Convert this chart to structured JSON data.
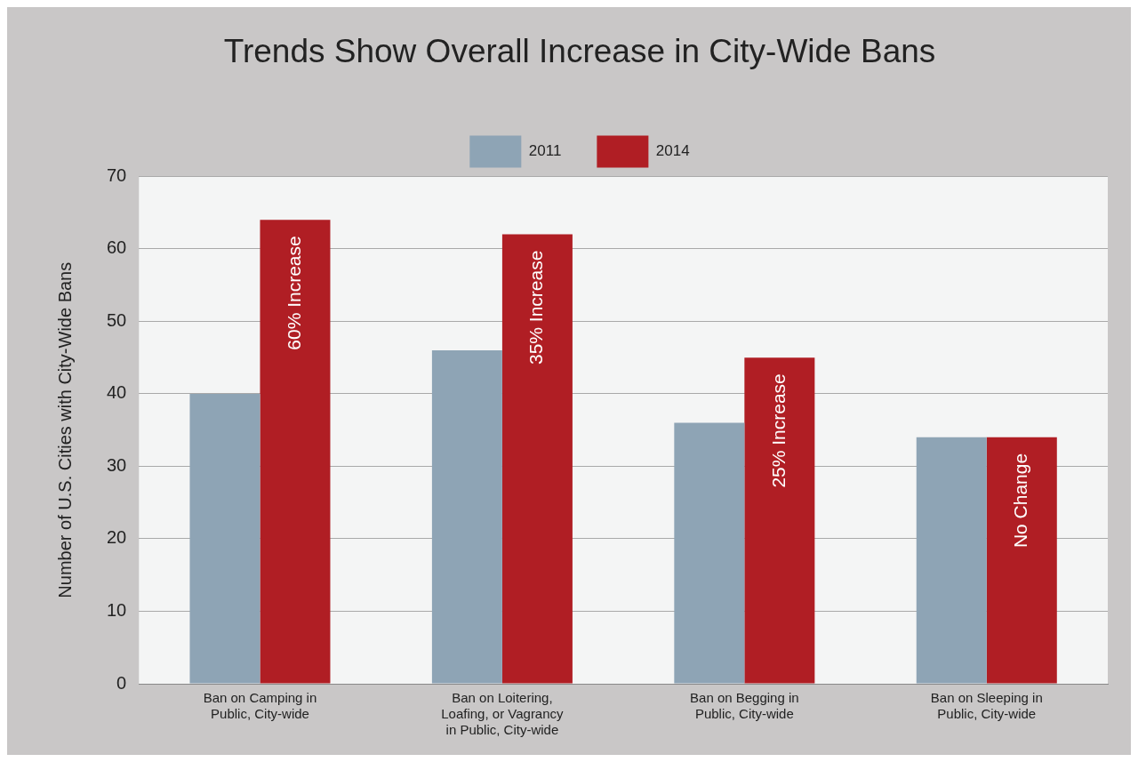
{
  "chart_data": {
    "type": "bar",
    "title": "Trends Show Overall Increase in City-Wide Bans",
    "ylabel": "Number of U.S. Cities with City-Wide Bans",
    "categories": [
      "Ban on Camping in Public, City-wide",
      "Ban on Loitering, Loafing, or Vagrancy in Public, City-wide",
      "Ban on Begging in Public, City-wide",
      "Ban on Sleeping in Public, City-wide"
    ],
    "series": [
      {
        "name": "2011",
        "color": "#8ea4b5",
        "values": [
          40,
          46,
          36,
          34
        ]
      },
      {
        "name": "2014",
        "color": "#b01e24",
        "values": [
          64,
          62,
          45,
          34
        ]
      }
    ],
    "annotations": [
      {
        "text": "60% Increase",
        "x": "Ban on Camping in Public, City-wide",
        "y": 64
      },
      {
        "text": "35% Increase",
        "x": "Ban on Loitering, Loafing, or Vagrancy in Public, City-wide",
        "y": 62
      },
      {
        "text": "25% Increase",
        "x": "Ban on Begging in Public, City-wide",
        "y": 45
      },
      {
        "text": "No Change",
        "x": "Ban on Sleeping in Public, City-wide",
        "y": 34
      }
    ],
    "ylim": [
      0,
      70
    ],
    "yticks": [
      0,
      10,
      20,
      30,
      40,
      50,
      60,
      70
    ],
    "grid": "y",
    "legend": "top"
  }
}
